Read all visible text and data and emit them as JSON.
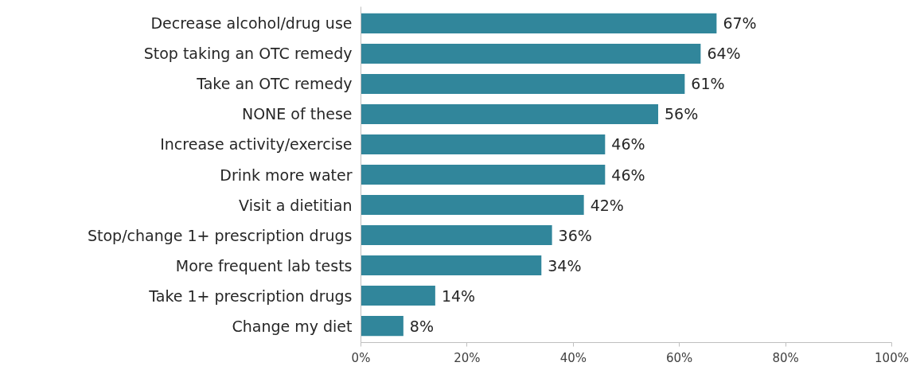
{
  "chart_data": {
    "type": "bar",
    "orientation": "horizontal",
    "categories": [
      "Decrease alcohol/drug use",
      "Stop taking an OTC remedy",
      "Take an OTC remedy",
      "NONE of these",
      "Increase activity/exercise",
      "Drink more water",
      "Visit a dietitian",
      "Stop/change 1+ prescription drugs",
      "More frequent lab tests",
      "Take 1+ prescription drugs",
      "Change my diet"
    ],
    "values": [
      67,
      64,
      61,
      56,
      46,
      46,
      42,
      36,
      34,
      14,
      8
    ],
    "value_labels": [
      "67%",
      "64%",
      "61%",
      "56%",
      "46%",
      "46%",
      "42%",
      "36%",
      "34%",
      "14%",
      "8%"
    ],
    "color": "#31869b",
    "xlim": [
      0,
      100
    ],
    "xticks": [
      {
        "value": 0,
        "label": "0%"
      },
      {
        "value": 20,
        "label": "20%"
      },
      {
        "value": 40,
        "label": "40%"
      },
      {
        "value": 60,
        "label": "60%"
      },
      {
        "value": 80,
        "label": "80%"
      },
      {
        "value": 100,
        "label": "100%"
      }
    ],
    "grid": false
  }
}
